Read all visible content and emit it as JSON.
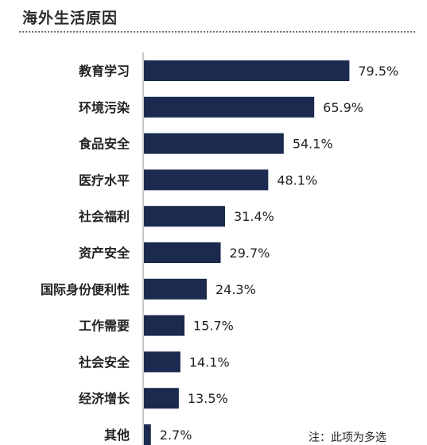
{
  "header": {
    "title": "海外生活原因"
  },
  "footnote": "注：此项为多选",
  "colors": {
    "bar": "#1b2a4e",
    "text": "#222222",
    "axis": "#c8c8c8"
  },
  "chart_data": {
    "type": "bar",
    "orientation": "horizontal",
    "title": "海外生活原因",
    "categories": [
      "教育学习",
      "环境污染",
      "食品安全",
      "医疗水平",
      "社会福利",
      "资产安全",
      "国际身份便利性",
      "工作需要",
      "社会安全",
      "经济增长",
      "其他"
    ],
    "values": [
      79.5,
      65.9,
      54.1,
      48.1,
      31.4,
      29.7,
      24.3,
      15.7,
      14.1,
      13.5,
      2.7
    ],
    "value_labels": [
      "79.5%",
      "65.9%",
      "54.1%",
      "48.1%",
      "31.4%",
      "29.7%",
      "24.3%",
      "15.7%",
      "14.1%",
      "13.5%",
      "2.7%"
    ],
    "xlim": [
      0,
      100
    ],
    "grid": false,
    "legend": "none"
  }
}
